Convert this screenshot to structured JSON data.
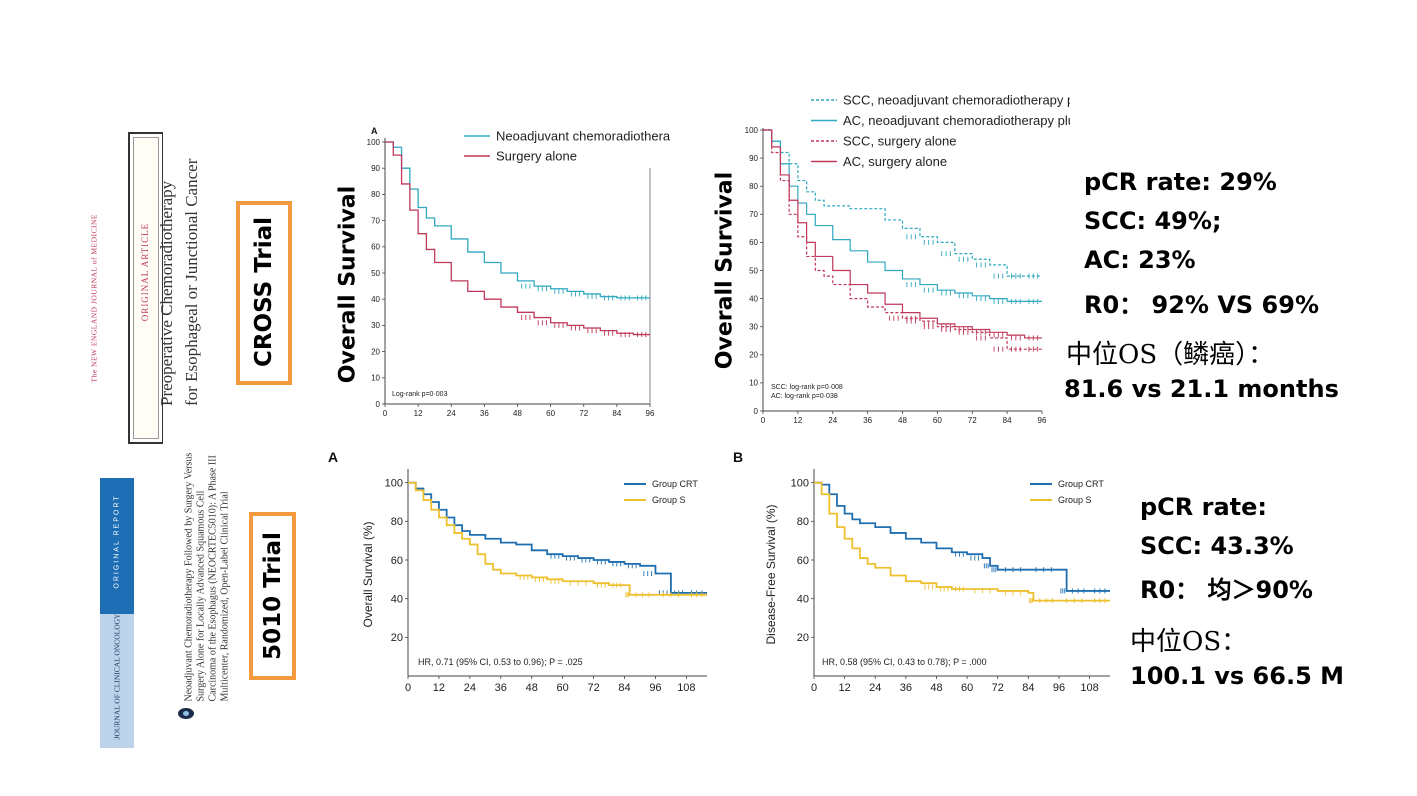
{
  "nejm": {
    "journal": "The NEW ENGLAND JOURNAL of MEDICINE",
    "article_type": "ORIGINAL ARTICLE",
    "title_line1": "Preoperative Chemoradiotherapy",
    "title_line2": "for Esophageal or Junctional Cancer",
    "trial_label": "CROSS Trial"
  },
  "jco": {
    "report_type": "ORIGINAL REPORT",
    "journal": "JOURNAL OF CLINICAL ONCOLOGY",
    "title_lines": [
      "Neoadjuvant Chemoradiotherapy Followed by Surgery Versus",
      "Surgery Alone for Locally Advanced Squamous Cell",
      "Carcinoma of the Esophagus (NEOCRTEC5010): A Phase III",
      "Multicenter, Randomized, Open-Label Clinical Trial"
    ],
    "trial_label": "5010 Trial"
  },
  "colors": {
    "orange": "#f39a3e",
    "teal": "#2fa8c0",
    "crimson": "#c0385a",
    "blue": "#1f6fb0",
    "gold": "#efc02e",
    "journal_blue": "#1d6eb5",
    "journal_light": "#bcd3ea"
  },
  "stats_top": [
    "pCR rate: 29%",
    "SCC: 49%;",
    "AC: 23%",
    "R0：  92% VS 69%",
    "中位OS（鳞癌）：",
    "81.6 vs 21.1 months"
  ],
  "stats_bottom": [
    "pCR rate:",
    "SCC: 43.3%",
    "R0：  均＞90%",
    "中位OS：",
    "100.1 vs 66.5 M"
  ],
  "chart_data": [
    {
      "type": "line",
      "panel": "A",
      "ylabel": "Overall Survival",
      "x_ticks": [
        0,
        12,
        24,
        36,
        48,
        60,
        72,
        84,
        96
      ],
      "y_ticks": [
        0,
        10,
        20,
        30,
        40,
        50,
        60,
        70,
        80,
        90,
        100
      ],
      "xlim": [
        0,
        96
      ],
      "ylim": [
        0,
        100
      ],
      "annotation": "Log-rank p=0·003",
      "legend_position": "top-right",
      "series": [
        {
          "name": "Neoadjuvant chemoradiotherapy",
          "color": "#2fa8c0",
          "dash": "",
          "points": [
            [
              0,
              100
            ],
            [
              3,
              98
            ],
            [
              6,
              90
            ],
            [
              9,
              82
            ],
            [
              12,
              75
            ],
            [
              15,
              71
            ],
            [
              18,
              68
            ],
            [
              24,
              63
            ],
            [
              30,
              58
            ],
            [
              36,
              54
            ],
            [
              42,
              50
            ],
            [
              48,
              47
            ],
            [
              54,
              45
            ],
            [
              60,
              44
            ],
            [
              66,
              43
            ],
            [
              72,
              42
            ],
            [
              78,
              41
            ],
            [
              84,
              40.5
            ],
            [
              90,
              40.5
            ],
            [
              96,
              40.5
            ]
          ]
        },
        {
          "name": "Surgery alone",
          "color": "#c0385a",
          "dash": "",
          "points": [
            [
              0,
              100
            ],
            [
              3,
              95
            ],
            [
              6,
              84
            ],
            [
              9,
              74
            ],
            [
              12,
              65
            ],
            [
              15,
              59
            ],
            [
              18,
              54
            ],
            [
              24,
              47
            ],
            [
              30,
              43
            ],
            [
              36,
              40
            ],
            [
              42,
              37
            ],
            [
              48,
              35
            ],
            [
              54,
              33
            ],
            [
              60,
              31
            ],
            [
              66,
              30
            ],
            [
              72,
              29
            ],
            [
              78,
              28
            ],
            [
              84,
              27
            ],
            [
              90,
              26.5
            ],
            [
              96,
              26.5
            ]
          ]
        }
      ]
    },
    {
      "type": "line",
      "ylabel": "Overall Survival",
      "x_ticks": [
        0,
        12,
        24,
        36,
        48,
        60,
        72,
        84,
        96
      ],
      "y_ticks": [
        0,
        10,
        20,
        30,
        40,
        50,
        60,
        70,
        80,
        90,
        100
      ],
      "xlim": [
        0,
        96
      ],
      "ylim": [
        0,
        100
      ],
      "annotation_lines": [
        "SCC: log-rank p=0·008",
        "AC: log-rank p=0·038"
      ],
      "legend_position": "top",
      "series": [
        {
          "name": "SCC, neoadjuvant chemoradiotherapy plus surgery",
          "color": "#2fa8c0",
          "dash": "3,2",
          "points": [
            [
              0,
              100
            ],
            [
              3,
              96
            ],
            [
              6,
              92
            ],
            [
              9,
              88
            ],
            [
              12,
              82
            ],
            [
              15,
              78
            ],
            [
              18,
              75
            ],
            [
              21,
              73
            ],
            [
              30,
              72
            ],
            [
              42,
              68
            ],
            [
              48,
              65
            ],
            [
              54,
              62
            ],
            [
              60,
              60
            ],
            [
              66,
              56
            ],
            [
              72,
              54
            ],
            [
              78,
              52
            ],
            [
              84,
              48
            ],
            [
              90,
              48
            ],
            [
              96,
              48
            ]
          ]
        },
        {
          "name": "AC, neoadjuvant chemoradiotherapy plus surgery",
          "color": "#2fa8c0",
          "dash": "",
          "points": [
            [
              0,
              100
            ],
            [
              3,
              96
            ],
            [
              6,
              88
            ],
            [
              9,
              80
            ],
            [
              12,
              74
            ],
            [
              15,
              70
            ],
            [
              18,
              66
            ],
            [
              24,
              61
            ],
            [
              30,
              57
            ],
            [
              36,
              53
            ],
            [
              42,
              50
            ],
            [
              48,
              47
            ],
            [
              54,
              45
            ],
            [
              60,
              43
            ],
            [
              66,
              42
            ],
            [
              72,
              41
            ],
            [
              78,
              40
            ],
            [
              84,
              39
            ],
            [
              90,
              39
            ],
            [
              96,
              39
            ]
          ]
        },
        {
          "name": "SCC, surgery alone",
          "color": "#c0385a",
          "dash": "3,2",
          "points": [
            [
              0,
              100
            ],
            [
              3,
              92
            ],
            [
              6,
              82
            ],
            [
              9,
              70
            ],
            [
              12,
              62
            ],
            [
              15,
              55
            ],
            [
              18,
              50
            ],
            [
              21,
              48
            ],
            [
              24,
              45
            ],
            [
              30,
              40
            ],
            [
              36,
              37
            ],
            [
              42,
              35
            ],
            [
              48,
              33
            ],
            [
              54,
              32
            ],
            [
              60,
              30
            ],
            [
              66,
              29
            ],
            [
              72,
              28
            ],
            [
              78,
              26
            ],
            [
              84,
              22
            ],
            [
              90,
              22
            ],
            [
              96,
              22
            ]
          ]
        },
        {
          "name": "AC, surgery alone",
          "color": "#c0385a",
          "dash": "",
          "points": [
            [
              0,
              100
            ],
            [
              3,
              94
            ],
            [
              6,
              84
            ],
            [
              9,
              75
            ],
            [
              12,
              67
            ],
            [
              15,
              60
            ],
            [
              18,
              55
            ],
            [
              24,
              50
            ],
            [
              30,
              45
            ],
            [
              36,
              42
            ],
            [
              42,
              38
            ],
            [
              48,
              35
            ],
            [
              54,
              33
            ],
            [
              60,
              31
            ],
            [
              66,
              30
            ],
            [
              72,
              29
            ],
            [
              78,
              28
            ],
            [
              84,
              27
            ],
            [
              90,
              26
            ],
            [
              96,
              26
            ]
          ]
        }
      ]
    },
    {
      "type": "line",
      "panel": "A",
      "ylabel": "Overall Survival (%)",
      "x_ticks": [
        0,
        12,
        24,
        36,
        48,
        60,
        72,
        84,
        96,
        108
      ],
      "y_ticks": [
        20,
        40,
        60,
        80,
        100
      ],
      "xlim": [
        0,
        116
      ],
      "ylim": [
        0,
        105
      ],
      "annotation": "HR, 0.71 (95% CI, 0.53 to 0.96); P = .025",
      "legend_position": "top-right",
      "series": [
        {
          "name": "Group CRT",
          "color": "#1f6fb0",
          "dash": "",
          "points": [
            [
              0,
              100
            ],
            [
              3,
              97
            ],
            [
              6,
              94
            ],
            [
              9,
              90
            ],
            [
              12,
              86
            ],
            [
              15,
              82
            ],
            [
              18,
              78
            ],
            [
              21,
              75
            ],
            [
              24,
              73
            ],
            [
              30,
              71
            ],
            [
              36,
              69
            ],
            [
              42,
              68
            ],
            [
              48,
              65
            ],
            [
              54,
              63
            ],
            [
              60,
              62
            ],
            [
              66,
              61
            ],
            [
              72,
              60
            ],
            [
              78,
              59
            ],
            [
              84,
              58
            ],
            [
              90,
              57
            ],
            [
              96,
              53
            ],
            [
              102,
              43
            ],
            [
              108,
              43
            ],
            [
              116,
              43
            ]
          ]
        },
        {
          "name": "Group S",
          "color": "#efc02e",
          "dash": "",
          "points": [
            [
              0,
              100
            ],
            [
              3,
              96
            ],
            [
              6,
              91
            ],
            [
              9,
              86
            ],
            [
              12,
              82
            ],
            [
              15,
              78
            ],
            [
              18,
              74
            ],
            [
              21,
              71
            ],
            [
              24,
              68
            ],
            [
              27,
              63
            ],
            [
              30,
              58
            ],
            [
              33,
              55
            ],
            [
              36,
              53
            ],
            [
              42,
              52
            ],
            [
              48,
              51
            ],
            [
              54,
              50
            ],
            [
              60,
              49
            ],
            [
              72,
              48
            ],
            [
              78,
              47
            ],
            [
              84,
              47
            ],
            [
              86,
              42
            ],
            [
              96,
              42
            ],
            [
              108,
              42
            ],
            [
              116,
              42
            ]
          ]
        }
      ]
    },
    {
      "type": "line",
      "panel": "B",
      "ylabel": "Disease-Free Survival (%)",
      "x_ticks": [
        0,
        12,
        24,
        36,
        48,
        60,
        72,
        84,
        96,
        108
      ],
      "y_ticks": [
        20,
        40,
        60,
        80,
        100
      ],
      "xlim": [
        0,
        116
      ],
      "ylim": [
        0,
        105
      ],
      "annotation": "HR, 0.58 (95% CI, 0.43 to 0.78); P = .000",
      "legend_position": "top-right",
      "series": [
        {
          "name": "Group CRT",
          "color": "#1f6fb0",
          "dash": "",
          "points": [
            [
              0,
              100
            ],
            [
              3,
              99
            ],
            [
              6,
              94
            ],
            [
              9,
              88
            ],
            [
              12,
              84
            ],
            [
              15,
              81
            ],
            [
              18,
              79
            ],
            [
              24,
              77
            ],
            [
              30,
              74
            ],
            [
              36,
              71
            ],
            [
              42,
              69
            ],
            [
              48,
              66
            ],
            [
              54,
              64
            ],
            [
              60,
              63
            ],
            [
              66,
              61
            ],
            [
              69,
              57
            ],
            [
              72,
              55
            ],
            [
              84,
              55
            ],
            [
              96,
              55
            ],
            [
              99,
              44
            ],
            [
              108,
              44
            ],
            [
              116,
              44
            ]
          ]
        },
        {
          "name": "Group S",
          "color": "#efc02e",
          "dash": "",
          "points": [
            [
              0,
              100
            ],
            [
              3,
              94
            ],
            [
              6,
              84
            ],
            [
              9,
              77
            ],
            [
              12,
              71
            ],
            [
              15,
              66
            ],
            [
              18,
              61
            ],
            [
              21,
              58
            ],
            [
              24,
              56
            ],
            [
              30,
              52
            ],
            [
              36,
              49
            ],
            [
              42,
              48
            ],
            [
              48,
              46
            ],
            [
              54,
              45
            ],
            [
              60,
              45
            ],
            [
              72,
              44
            ],
            [
              84,
              43
            ],
            [
              86,
              39
            ],
            [
              96,
              39
            ],
            [
              108,
              39
            ],
            [
              116,
              39
            ]
          ]
        }
      ]
    }
  ]
}
